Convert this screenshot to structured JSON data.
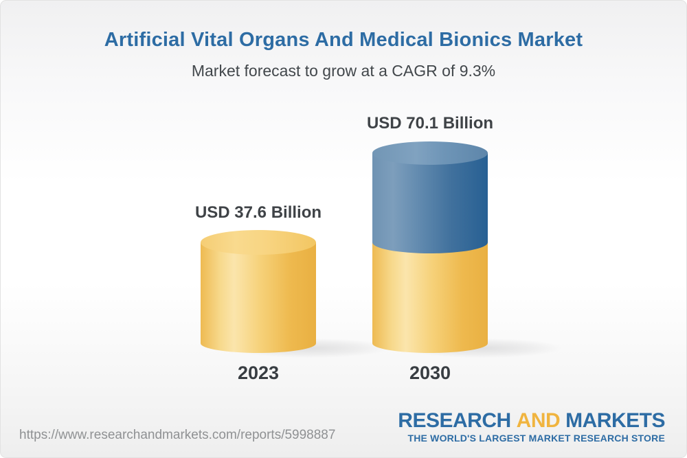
{
  "header": {
    "title": "Artificial Vital Organs And Medical Bionics Market",
    "subtitle": "Market forecast to grow at a CAGR of 9.3%"
  },
  "chart_data": {
    "type": "bar",
    "variant": "3d-cylinder",
    "categories": [
      "2023",
      "2030"
    ],
    "values": [
      37.6,
      70.1
    ],
    "unit": "USD Billion",
    "value_labels": [
      "USD 37.6 Billion",
      "USD 70.1 Billion"
    ],
    "cagr_percent": 9.3,
    "title": "Artificial Vital Organs And Medical Bionics Market",
    "subtitle": "Market forecast to grow at a CAGR of 9.3%",
    "xlabel": "",
    "ylabel": "",
    "grid": false,
    "legend": false,
    "annotations": "2030 cylinder is stacked: gold base represents the 2023 value (37.6), blue upper segment represents growth to 70.1",
    "colors": {
      "bar_2023": "#F5CE74",
      "bar_2030_base": "#F5CE74",
      "bar_2030_growth": "#5D86AB",
      "value_label_text": "#3F4347",
      "axis_label_text": "#383D42"
    }
  },
  "footer": {
    "url": "https://www.researchandmarkets.com/reports/5998887",
    "logo": {
      "word1": "RESEARCH",
      "word2": "AND",
      "word3": "MARKETS",
      "tagline": "THE WORLD'S LARGEST MARKET RESEARCH STORE",
      "blue": "#2D6CA4",
      "gold": "#F0B43F"
    }
  }
}
